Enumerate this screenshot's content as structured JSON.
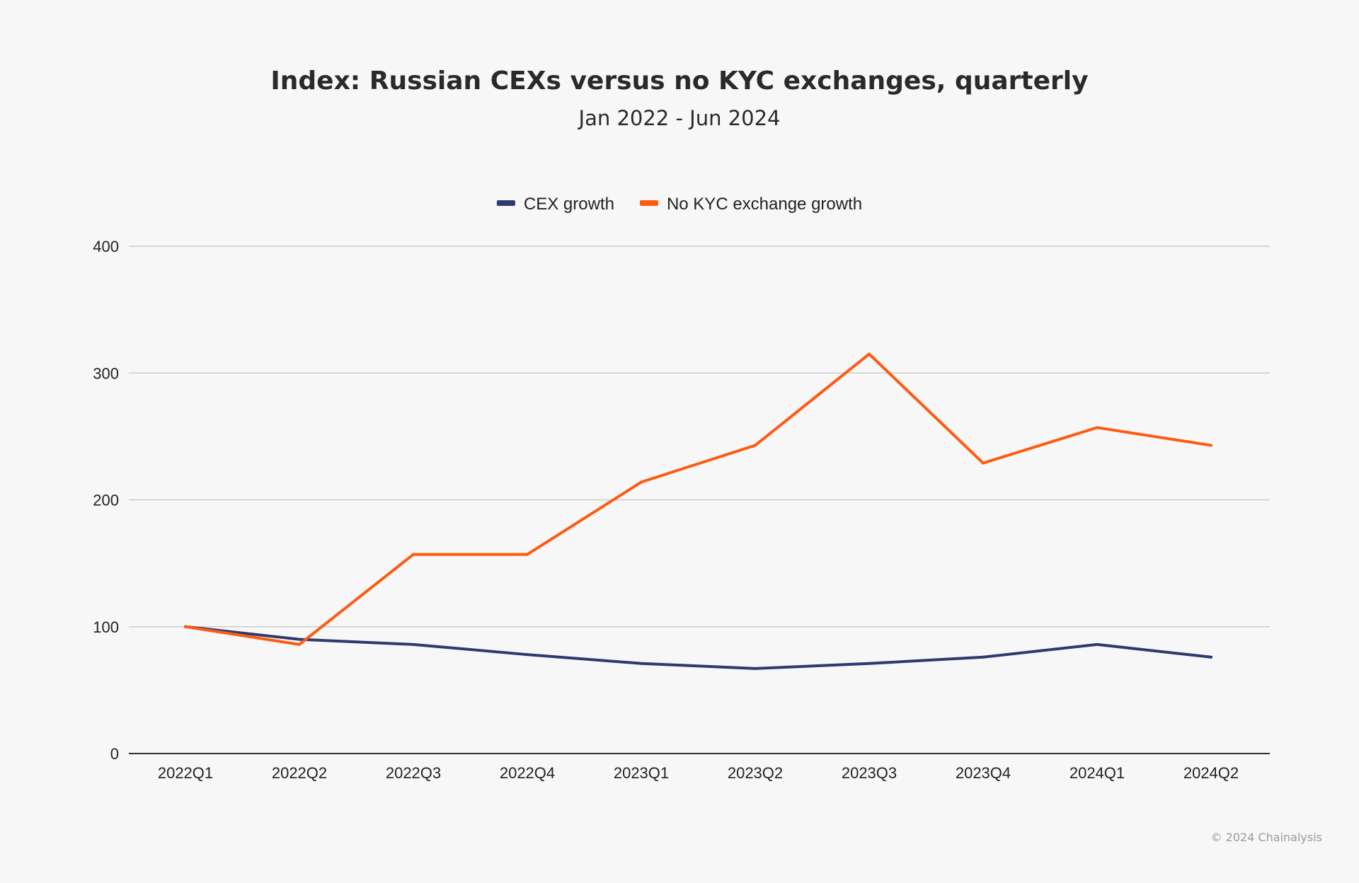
{
  "chart_data": {
    "type": "line",
    "title": "Index: Russian CEXs versus no KYC exchanges, quarterly",
    "subtitle": "Jan 2022 - Jun 2024",
    "categories": [
      "2022Q1",
      "2022Q2",
      "2022Q3",
      "2022Q4",
      "2023Q1",
      "2023Q2",
      "2023Q3",
      "2023Q4",
      "2024Q1",
      "2024Q2"
    ],
    "series": [
      {
        "name": "CEX growth",
        "color": "#2e3a6e",
        "values": [
          100,
          90,
          86,
          78,
          71,
          67,
          71,
          76,
          86,
          76
        ]
      },
      {
        "name": "No KYC exchange growth",
        "color": "#ff5a12",
        "values": [
          100,
          86,
          157,
          157,
          214,
          243,
          315,
          229,
          257,
          243
        ]
      }
    ],
    "ylim": [
      0,
      400
    ],
    "yticks": [
      "0",
      "100",
      "200",
      "300",
      "400"
    ],
    "grid": true,
    "legend": "top-center"
  },
  "footer": {
    "copyright": "© 2024 Chainalysis"
  }
}
